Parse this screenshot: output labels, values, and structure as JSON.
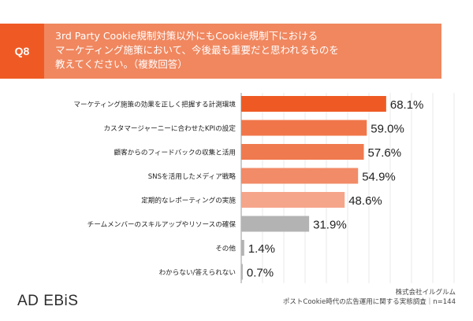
{
  "header": {
    "badge": "Q8",
    "question_lines": [
      "3rd Party Cookie規制対策以外にもCookie規制下における",
      "マーケティング施策において、今後最も重要だと思われるものを",
      "教えてください。（複数回答）"
    ],
    "colors": {
      "badge": "#ef5a24",
      "question_bg": "#f0875f"
    }
  },
  "chart_data": {
    "type": "bar",
    "orientation": "horizontal",
    "categories": [
      "マーケティング施策の効果を正しく把握する計測環境",
      "カスタマージャーニーに合わせたKPIの設定",
      "顧客からのフィードバックの収集と活用",
      "SNSを活用したメディア戦略",
      "定期的なレポーティングの実施",
      "チームメンバーのスキルアップやリソースの確保",
      "その他",
      "わからない/答えられない"
    ],
    "values": [
      68.1,
      59.0,
      57.6,
      54.9,
      48.6,
      31.9,
      1.4,
      0.7
    ],
    "value_labels": [
      "68.1%",
      "59.0%",
      "57.6%",
      "54.9%",
      "48.6%",
      "31.9%",
      "1.4%",
      "0.7%"
    ],
    "bar_colors": [
      "#ef5a24",
      "#f0764a",
      "#f07a4f",
      "#f28b67",
      "#f5a58a",
      "#b3b3b3",
      "#b3b3b3",
      "#b3b3b3"
    ],
    "xlim": [
      0,
      100
    ],
    "grid": true
  },
  "footer": {
    "logo": {
      "ad": "AD",
      "ebis": "EBiS"
    },
    "company": "株式会社イルグルム",
    "survey": "ポストCookie時代の広告運用に関する実態調査｜n=144"
  }
}
